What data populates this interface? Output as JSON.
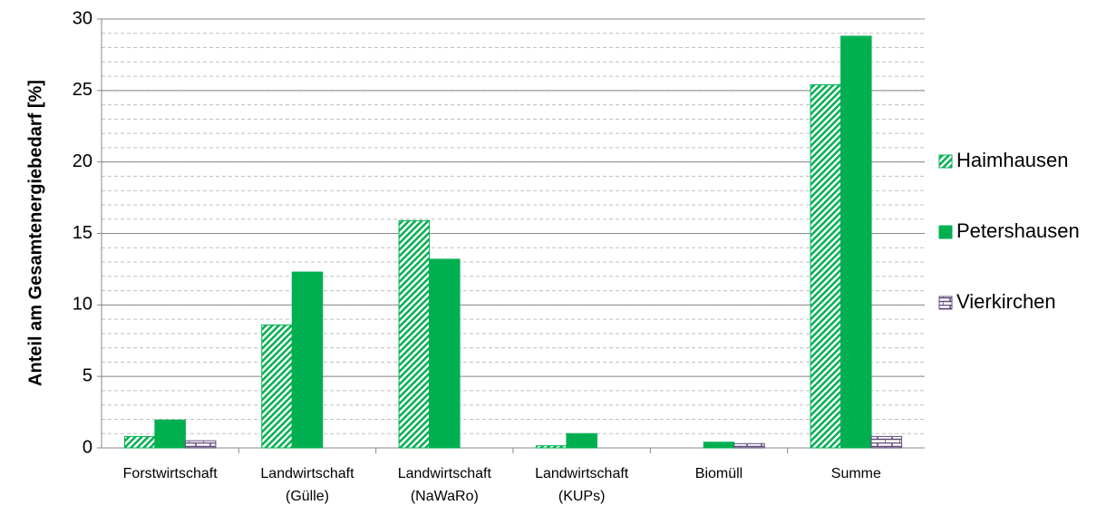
{
  "chart_data": {
    "type": "bar",
    "ylabel": "Anteil am Gesamtenergiebedarf [%]",
    "categories": [
      "Forstwirtschaft",
      "Landwirtschaft\n(Gülle)",
      "Landwirtschaft\n(NaWaRo)",
      "Landwirtschaft\n(KUPs)",
      "Biomüll",
      "Summe"
    ],
    "series": [
      {
        "name": "Haimhausen",
        "color": "#00b050",
        "pattern": "diagonal",
        "values": [
          0.8,
          8.6,
          15.9,
          0.15,
          0,
          25.4
        ]
      },
      {
        "name": "Petershausen",
        "color": "#00b050",
        "pattern": "solid",
        "values": [
          1.95,
          12.3,
          13.2,
          1.0,
          0.4,
          28.8
        ]
      },
      {
        "name": "Vierkirchen",
        "color": "#604a7b",
        "pattern": "brick",
        "values": [
          0.5,
          0,
          0,
          0,
          0.3,
          0.8
        ]
      }
    ],
    "ylim": [
      0,
      30
    ],
    "yticks": [
      0,
      5,
      10,
      15,
      20,
      25,
      30
    ],
    "grid": true,
    "minor_grid_interval": 1,
    "legend": "right"
  }
}
